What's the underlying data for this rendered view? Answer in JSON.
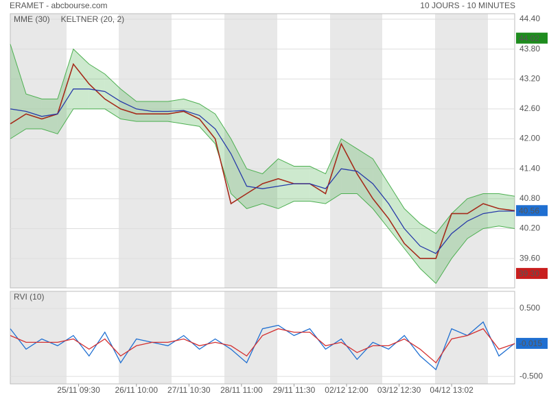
{
  "header": {
    "title": "ERAMET - abcbourse.com",
    "period": "10 JOURS - 10 MINUTES"
  },
  "chart_data": [
    {
      "type": "line",
      "x": [
        0,
        3,
        6,
        9,
        12,
        15,
        18,
        21,
        24,
        27,
        30,
        33,
        36,
        39,
        42,
        45,
        48,
        51,
        54,
        57,
        60,
        63,
        66,
        69,
        72,
        75,
        78,
        81,
        84,
        87,
        90,
        93,
        96
      ],
      "xlim": [
        0,
        96
      ],
      "xticks": [
        {
          "value": 13,
          "label": "25/11 09:30"
        },
        {
          "value": 24,
          "label": "26/11 10:00"
        },
        {
          "value": 34,
          "label": "27/11 10:30"
        },
        {
          "value": 44,
          "label": "28/11 11:00"
        },
        {
          "value": 54,
          "label": "29/11 11:30"
        },
        {
          "value": 64,
          "label": "02/12 12:00"
        },
        {
          "value": 74,
          "label": "03/12 12:30"
        },
        {
          "value": 84,
          "label": "04/12 13:02"
        }
      ],
      "ylim": [
        39.01,
        44.51
      ],
      "yticks": [
        {
          "value": 44.4,
          "label": "44.40"
        },
        {
          "value": 43.8,
          "label": "43.80"
        },
        {
          "value": 43.2,
          "label": "43.20"
        },
        {
          "value": 42.6,
          "label": "42.60"
        },
        {
          "value": 42.0,
          "label": "42.00"
        },
        {
          "value": 41.4,
          "label": "41.40"
        },
        {
          "value": 40.8,
          "label": "40.80"
        },
        {
          "value": 40.2,
          "label": "40.20"
        },
        {
          "value": 39.6,
          "label": "39.60"
        }
      ],
      "grid": true,
      "band": {
        "name": "KELTNER (20, 2)",
        "color": "#4caf50",
        "upper": [
          43.9,
          42.9,
          42.8,
          42.8,
          43.8,
          43.5,
          43.3,
          43.0,
          42.75,
          42.75,
          42.75,
          42.8,
          42.7,
          42.5,
          42.0,
          41.4,
          41.3,
          41.6,
          41.45,
          41.45,
          41.3,
          42.0,
          41.8,
          41.6,
          41.1,
          40.6,
          40.3,
          40.1,
          40.5,
          40.8,
          40.9,
          40.9,
          40.85
        ],
        "lower": [
          42.0,
          42.2,
          42.2,
          42.1,
          42.6,
          42.6,
          42.6,
          42.4,
          42.35,
          42.35,
          42.35,
          42.3,
          42.25,
          41.9,
          40.9,
          40.6,
          40.7,
          40.6,
          40.75,
          40.75,
          40.7,
          40.9,
          40.9,
          40.6,
          40.2,
          39.8,
          39.4,
          39.1,
          39.6,
          40.0,
          40.2,
          40.25,
          40.2
        ]
      },
      "series": [
        {
          "color": "#a52a1a",
          "values": [
            42.3,
            42.5,
            42.4,
            42.5,
            43.5,
            43.1,
            42.8,
            42.6,
            42.5,
            42.5,
            42.5,
            42.55,
            42.4,
            42.0,
            40.7,
            40.9,
            41.1,
            41.2,
            41.1,
            41.1,
            40.9,
            41.9,
            41.3,
            40.8,
            40.4,
            39.9,
            39.6,
            39.6,
            40.5,
            40.5,
            40.7,
            40.6,
            40.56
          ]
        },
        {
          "name": "MME (30)",
          "color": "#2639a8",
          "values": [
            42.6,
            42.55,
            42.45,
            42.5,
            43.0,
            43.0,
            42.95,
            42.75,
            42.6,
            42.55,
            42.55,
            42.57,
            42.47,
            42.2,
            41.7,
            41.05,
            41.0,
            41.05,
            41.1,
            41.1,
            41.0,
            41.4,
            41.35,
            41.1,
            40.7,
            40.2,
            39.85,
            39.7,
            40.1,
            40.35,
            40.5,
            40.55,
            40.55
          ]
        }
      ],
      "markers": [
        {
          "value": 44.02,
          "label": "44.02",
          "color": "#1e8c1e"
        },
        {
          "value": 40.56,
          "label": "40.56",
          "color": "#1f6fd1"
        },
        {
          "value": 39.3,
          "label": "39.30",
          "color": "#c81e1e"
        }
      ]
    },
    {
      "type": "line",
      "x": [
        0,
        3,
        6,
        9,
        12,
        15,
        18,
        21,
        24,
        27,
        30,
        33,
        36,
        39,
        42,
        45,
        48,
        51,
        54,
        57,
        60,
        63,
        66,
        69,
        72,
        75,
        78,
        81,
        84,
        87,
        90,
        93,
        96
      ],
      "xlim": [
        0,
        96
      ],
      "ylim": [
        -0.61,
        0.75
      ],
      "yticks": [
        {
          "value": 0.5,
          "label": "0.500"
        },
        {
          "value": -0.5,
          "label": "-0.500"
        }
      ],
      "grid": true,
      "series": [
        {
          "name": "RVI (10)",
          "color": "#1f6fd1",
          "values": [
            0.2,
            -0.1,
            0.05,
            -0.05,
            0.1,
            -0.2,
            0.15,
            -0.3,
            0.05,
            0.0,
            -0.05,
            0.1,
            -0.1,
            0.05,
            -0.1,
            -0.3,
            0.2,
            0.25,
            0.1,
            0.2,
            -0.1,
            0.05,
            -0.25,
            0.0,
            -0.1,
            0.1,
            -0.2,
            -0.4,
            0.2,
            0.1,
            0.3,
            -0.2,
            -0.015
          ]
        },
        {
          "color": "#d32f2f",
          "values": [
            0.1,
            0.0,
            0.0,
            0.0,
            0.05,
            -0.1,
            0.05,
            -0.2,
            -0.05,
            0.0,
            0.0,
            0.05,
            -0.05,
            0.0,
            -0.05,
            -0.2,
            0.1,
            0.2,
            0.15,
            0.15,
            -0.05,
            0.0,
            -0.15,
            -0.05,
            -0.05,
            0.05,
            -0.1,
            -0.3,
            0.05,
            0.1,
            0.2,
            -0.1,
            -0.02
          ]
        }
      ],
      "markers": [
        {
          "value": -0.015,
          "label": "-0.015",
          "color": "#1f6fd1"
        }
      ]
    }
  ]
}
